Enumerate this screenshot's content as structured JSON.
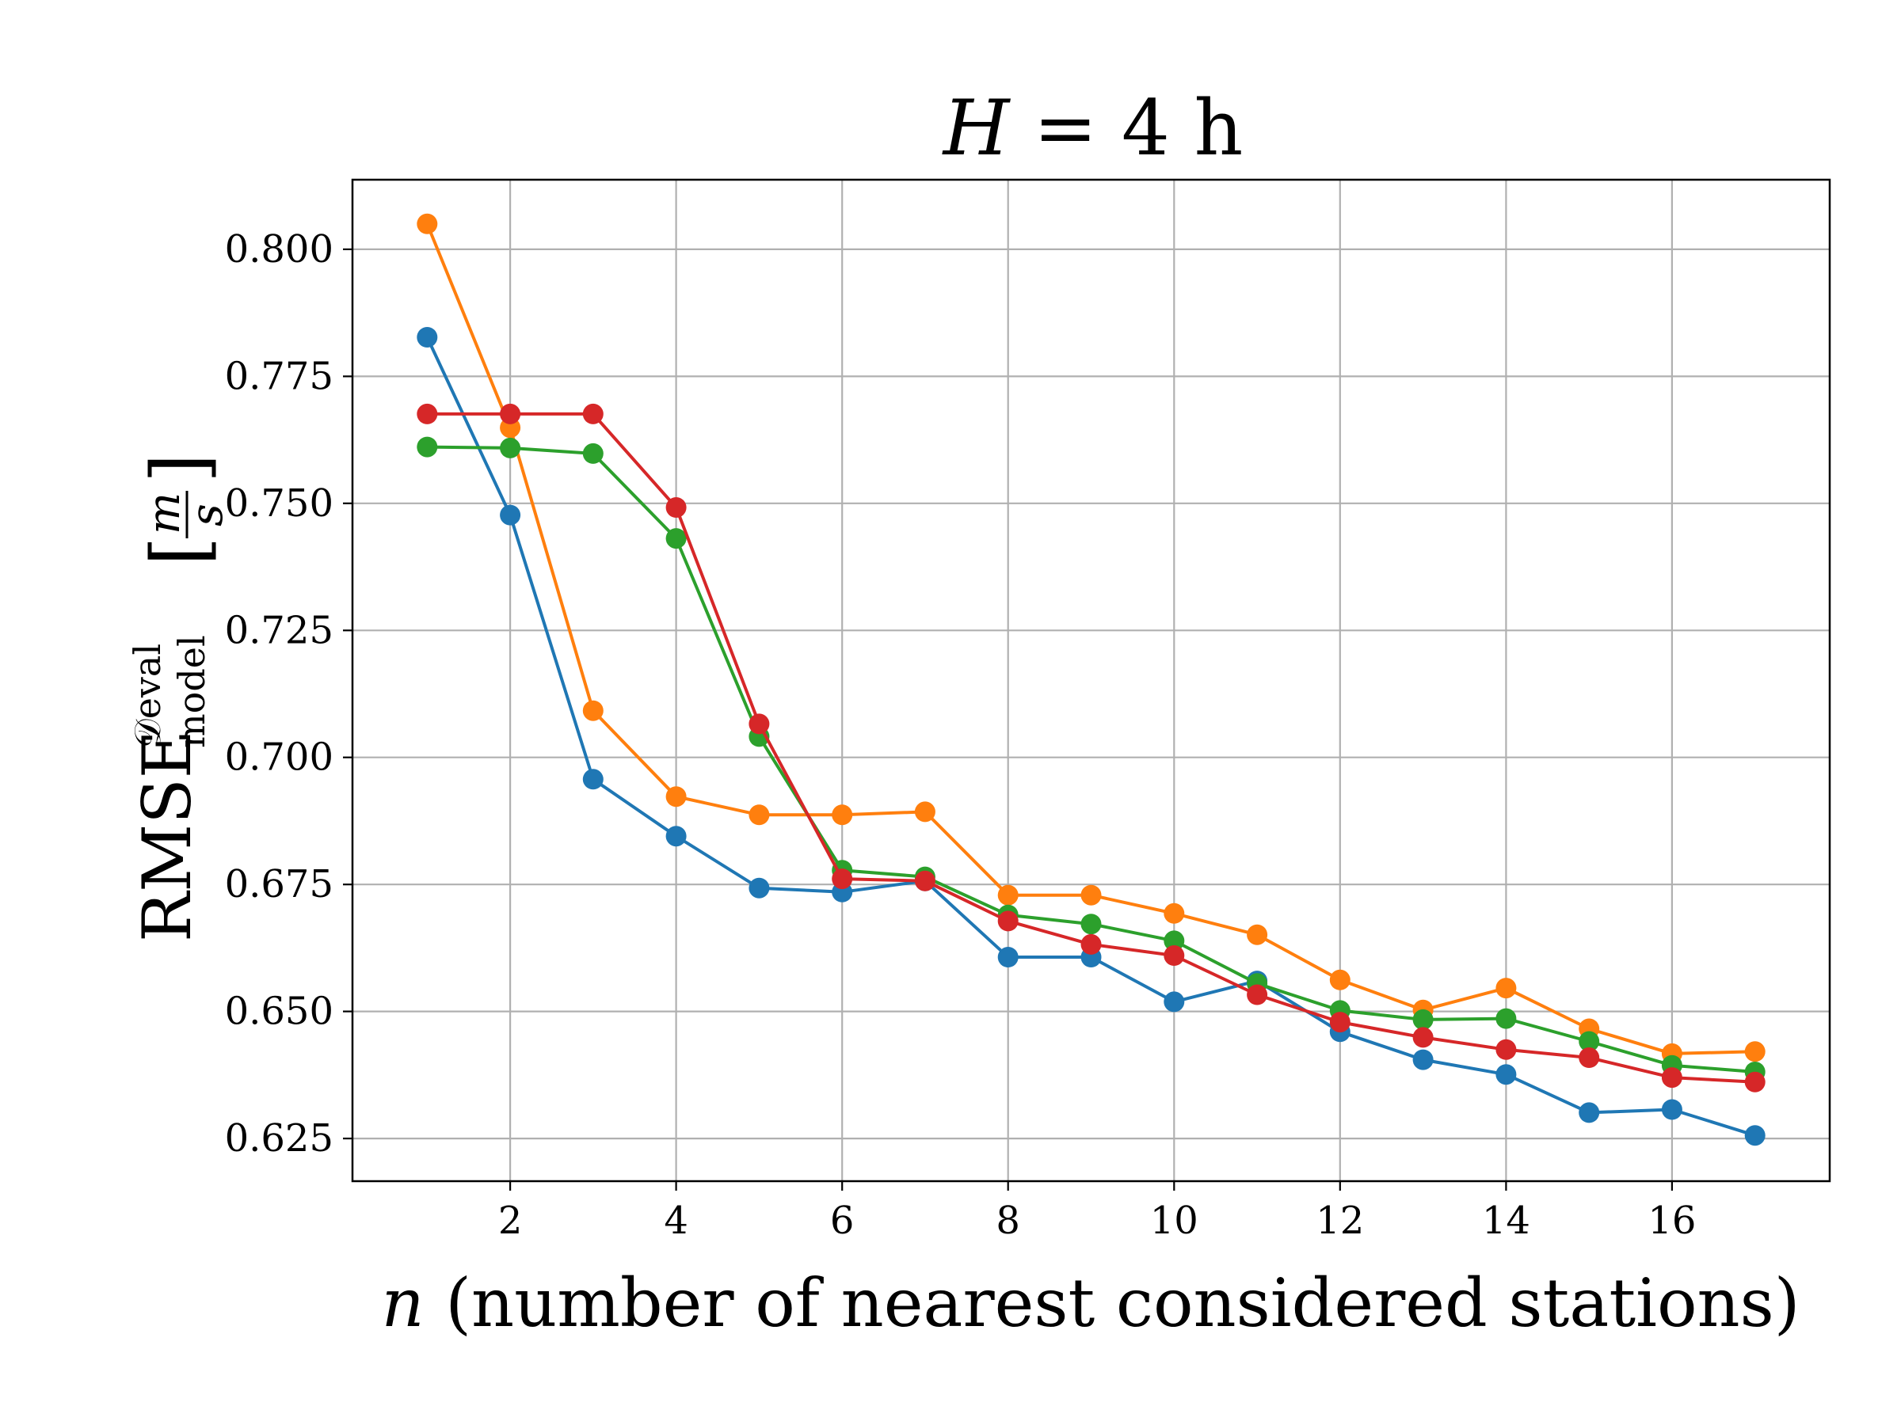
{
  "chart_data": {
    "type": "line",
    "title_prefix": "H",
    "title_suffix": " = 4 h",
    "xlabel_var": "n",
    "xlabel_text": " (number of nearest considered stations)",
    "ylabel_main": "RMSE",
    "ylabel_sup": "𝒟eval",
    "ylabel_sub": "model",
    "ylabel_unit_num": "m",
    "ylabel_unit_den": "s",
    "xlim": [
      0.1,
      17.9
    ],
    "ylim": [
      0.6166,
      0.8137
    ],
    "xticks": [
      2,
      4,
      6,
      8,
      10,
      12,
      14,
      16
    ],
    "yticks": [
      0.625,
      0.65,
      0.675,
      0.7,
      0.725,
      0.75,
      0.775,
      0.8
    ],
    "ytick_labels": [
      "0.625",
      "0.650",
      "0.675",
      "0.700",
      "0.725",
      "0.750",
      "0.775",
      "0.800"
    ],
    "grid": true,
    "x": [
      1,
      2,
      3,
      4,
      5,
      6,
      7,
      8,
      9,
      10,
      11,
      12,
      13,
      14,
      15,
      16,
      17
    ],
    "series": [
      {
        "color": "#1f77b4",
        "values": [
          0.7827,
          0.7477,
          0.6957,
          0.6845,
          0.6743,
          0.6735,
          0.6757,
          0.6607,
          0.6607,
          0.6519,
          0.656,
          0.646,
          0.6405,
          0.6376,
          0.6301,
          0.6307,
          0.6256
        ]
      },
      {
        "color": "#ff7f0e",
        "values": [
          0.805,
          0.7649,
          0.7092,
          0.6923,
          0.6887,
          0.6887,
          0.6893,
          0.6729,
          0.6729,
          0.6693,
          0.6651,
          0.6562,
          0.6503,
          0.6546,
          0.6466,
          0.6417,
          0.6421
        ]
      },
      {
        "color": "#2ca02c",
        "values": [
          0.7611,
          0.7609,
          0.7598,
          0.7431,
          0.7041,
          0.6778,
          0.6765,
          0.669,
          0.6672,
          0.6639,
          0.6555,
          0.6502,
          0.6484,
          0.6486,
          0.6441,
          0.6394,
          0.6381
        ]
      },
      {
        "color": "#d62728",
        "values": [
          0.7676,
          0.7676,
          0.7676,
          0.7492,
          0.7066,
          0.6761,
          0.6757,
          0.6678,
          0.6632,
          0.661,
          0.6533,
          0.6479,
          0.6449,
          0.6425,
          0.6409,
          0.637,
          0.6361
        ]
      }
    ]
  }
}
